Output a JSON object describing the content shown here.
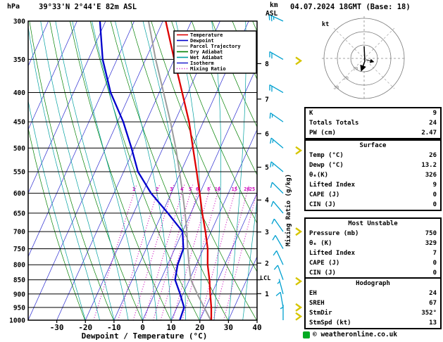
{
  "header": {
    "station": "39°33'N 2°44'E 82m ASL",
    "datetime": "04.07.2024 18GMT (Base: 18)"
  },
  "axes": {
    "pressure_unit": "hPa",
    "km": "km",
    "asl": "ASL",
    "xlabel": "Dewpoint / Temperature (°C)",
    "mixing_label": "Mixing Ratio (g/kg)",
    "lcl": "LCL"
  },
  "legend": {
    "items": [
      {
        "label": "Temperature",
        "color": "#dd0000",
        "dash": ""
      },
      {
        "label": "Dewpoint",
        "color": "#0000cc",
        "dash": ""
      },
      {
        "label": "Parcel Trajectory",
        "color": "#9c9c9c",
        "dash": ""
      },
      {
        "label": "Dry Adiabat",
        "color": "#008000",
        "dash": ""
      },
      {
        "label": "Wet Adiabat",
        "color": "#00a0a0",
        "dash": ""
      },
      {
        "label": "Isotherm",
        "color": "#2a2ad0",
        "dash": ""
      },
      {
        "label": "Mixing Ratio",
        "color": "#cc00bb",
        "dash": "1,2.5"
      }
    ]
  },
  "chart_data": {
    "type": "line",
    "subtype": "skewT-logP sounding",
    "title": "39°33'N 2°44'E 82m ASL",
    "valid": "04.07.2024 18GMT (Base: 18)",
    "pressure_ticks_hpa": [
      300,
      350,
      400,
      450,
      500,
      550,
      600,
      650,
      700,
      750,
      800,
      850,
      900,
      950,
      1000
    ],
    "temp_ticks_c": [
      -30,
      -20,
      -10,
      0,
      10,
      20,
      30,
      40
    ],
    "km_ticks": [
      1,
      2,
      3,
      4,
      5,
      6,
      7,
      8
    ],
    "isotherms_c": {
      "min": -110,
      "max": 40,
      "step": 10
    },
    "dry_adiabats_theta_k": {
      "min": 253,
      "max": 453,
      "step": 10
    },
    "wet_adiabats_start_c": {
      "min": -20,
      "max": 35,
      "step": 5
    },
    "mixing_ratio_g_kg": [
      1,
      2,
      3,
      4,
      5,
      6,
      8,
      10,
      15,
      20,
      25
    ],
    "temperature_profile_p_t": [
      [
        300,
        -39
      ],
      [
        350,
        -30
      ],
      [
        400,
        -22
      ],
      [
        450,
        -15
      ],
      [
        500,
        -9.5
      ],
      [
        550,
        -4.5
      ],
      [
        600,
        0
      ],
      [
        650,
        4
      ],
      [
        700,
        8
      ],
      [
        750,
        11.5
      ],
      [
        800,
        14
      ],
      [
        850,
        17
      ],
      [
        900,
        19.5
      ],
      [
        950,
        22
      ],
      [
        1000,
        24
      ]
    ],
    "dewpoint_profile_p_t": [
      [
        300,
        -62
      ],
      [
        350,
        -55
      ],
      [
        400,
        -47
      ],
      [
        450,
        -38
      ],
      [
        500,
        -31
      ],
      [
        550,
        -25
      ],
      [
        600,
        -17
      ],
      [
        650,
        -8
      ],
      [
        700,
        0
      ],
      [
        750,
        3
      ],
      [
        800,
        3.5
      ],
      [
        850,
        5
      ],
      [
        900,
        9
      ],
      [
        950,
        12.5
      ],
      [
        1000,
        13
      ]
    ],
    "parcel_profile_p_t": [
      [
        300,
        -45
      ],
      [
        350,
        -36.5
      ],
      [
        400,
        -28.5
      ],
      [
        450,
        -21.5
      ],
      [
        500,
        -15.5
      ],
      [
        550,
        -10.5
      ],
      [
        600,
        -6
      ],
      [
        650,
        -2
      ],
      [
        700,
        1.5
      ],
      [
        750,
        4.5
      ],
      [
        800,
        7.5
      ],
      [
        850,
        10.5
      ],
      [
        900,
        15
      ],
      [
        950,
        19.5
      ],
      [
        1000,
        23.8
      ]
    ],
    "wind_barbs": [
      {
        "p": 300,
        "dir": 295,
        "spd": 25
      },
      {
        "p": 350,
        "dir": 300,
        "spd": 20
      },
      {
        "p": 400,
        "dir": 300,
        "spd": 20
      },
      {
        "p": 450,
        "dir": 305,
        "spd": 15
      },
      {
        "p": 500,
        "dir": 310,
        "spd": 15
      },
      {
        "p": 550,
        "dir": 310,
        "spd": 15
      },
      {
        "p": 600,
        "dir": 315,
        "spd": 10
      },
      {
        "p": 650,
        "dir": 320,
        "spd": 10
      },
      {
        "p": 700,
        "dir": 325,
        "spd": 10
      },
      {
        "p": 750,
        "dir": 330,
        "spd": 10
      },
      {
        "p": 800,
        "dir": 335,
        "spd": 10
      },
      {
        "p": 850,
        "dir": 340,
        "spd": 10
      },
      {
        "p": 900,
        "dir": 345,
        "spd": 5
      },
      {
        "p": 950,
        "dir": 350,
        "spd": 10
      },
      {
        "p": 1000,
        "dir": 360,
        "spd": 5
      }
    ],
    "cloud_markers_hpa": [
      352,
      505,
      700,
      855,
      950,
      985
    ],
    "lcl_hpa": 850,
    "colors": {
      "temperature": "#dd0000",
      "dewpoint": "#0000cc",
      "parcel": "#9c9c9c",
      "dry_adiabat": "#008000",
      "wet_adiabat": "#00a0a0",
      "isotherm": "#2a2ad0",
      "mixing_ratio": "#cc00bb",
      "barb": "#00a0d0",
      "cloud_marker": "#d6c500",
      "grid": "#000000"
    }
  },
  "hodograph": {
    "unit_label": "kt",
    "rings_kt": [
      10,
      20,
      30
    ],
    "trace_uv_kt": [
      [
        0,
        9
      ],
      [
        0.5,
        -2
      ],
      [
        -2,
        -9
      ]
    ],
    "storm_motion_uv_kt": [
      [
        1.5,
        -1
      ],
      [
        7,
        -2.5
      ]
    ]
  },
  "panel": {
    "indices": {
      "rows": [
        {
          "label": "K",
          "value": "9"
        },
        {
          "label": "Totals Totals",
          "value": "24"
        },
        {
          "label": "PW (cm)",
          "value": "2.47"
        }
      ]
    },
    "surface": {
      "title": "Surface",
      "rows": [
        {
          "label": "Temp (°C)",
          "value": "26"
        },
        {
          "label": "Dewp (°C)",
          "value": "13.2"
        },
        {
          "label": "θₑ(K)",
          "value": "326"
        },
        {
          "label": "Lifted Index",
          "value": "9"
        },
        {
          "label": "CAPE (J)",
          "value": "0"
        },
        {
          "label": "CIN (J)",
          "value": "0"
        }
      ]
    },
    "most_unstable": {
      "title": "Most Unstable",
      "rows": [
        {
          "label": "Pressure (mb)",
          "value": "750"
        },
        {
          "label": "θₑ (K)",
          "value": "329"
        },
        {
          "label": "Lifted Index",
          "value": "7"
        },
        {
          "label": "CAPE (J)",
          "value": "0"
        },
        {
          "label": "CIN (J)",
          "value": "0"
        }
      ]
    },
    "hodograph_stats": {
      "title": "Hodograph",
      "rows": [
        {
          "label": "EH",
          "value": "24"
        },
        {
          "label": "SREH",
          "value": "67"
        },
        {
          "label": "StmDir",
          "value": "352°"
        },
        {
          "label": "StmSpd (kt)",
          "value": "13"
        }
      ]
    }
  },
  "footer": {
    "copyright": "© weatheronline.co.uk"
  }
}
